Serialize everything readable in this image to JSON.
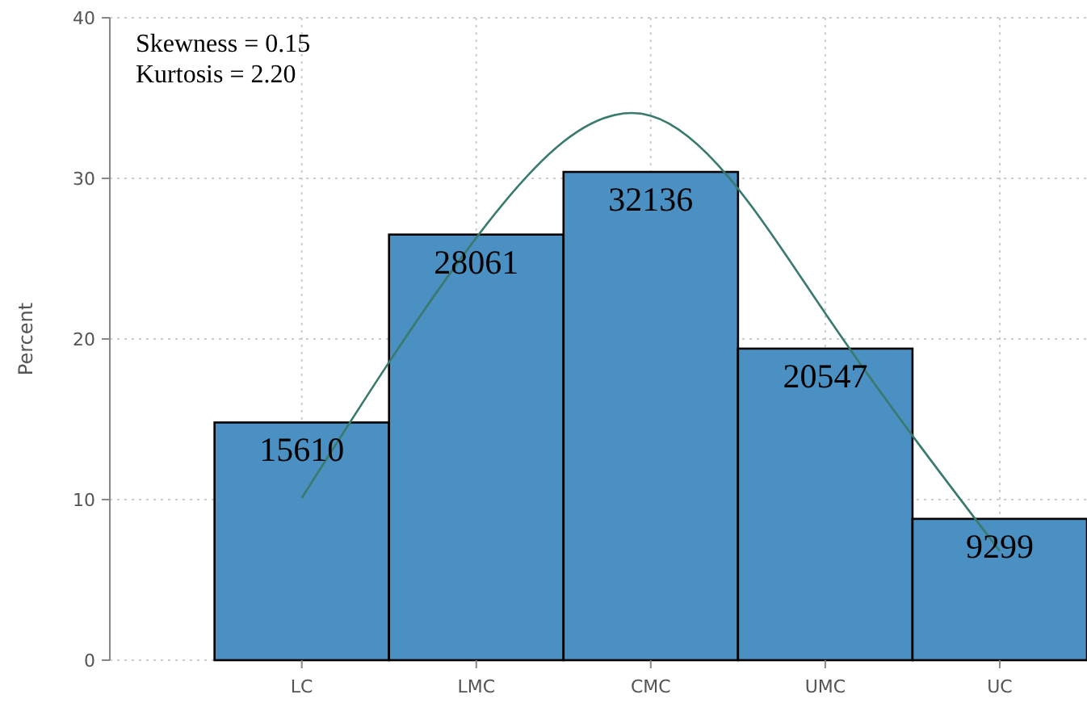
{
  "chart_data": {
    "type": "bar",
    "ylabel": "Percent",
    "categories": [
      "LC",
      "LMC",
      "CMC",
      "UMC",
      "UC"
    ],
    "series": [
      {
        "color": "#4a90c2",
        "values": [
          14.8,
          26.5,
          30.4,
          19.4,
          8.8
        ]
      },
      {
        "type": "line",
        "color": "#3a7a6e",
        "values": [
          10.1,
          26.3,
          33.9,
          21.6,
          6.8
        ]
      }
    ],
    "ylim": [
      0,
      40
    ],
    "yticks": [
      0,
      10,
      20,
      30,
      40
    ],
    "grid": true,
    "annotations": [
      "Skewness = 0.15",
      "Kurtosis = 2.20",
      {
        "text": "15610",
        "x": "LC",
        "y": 14.8
      },
      {
        "text": "28061",
        "x": "LMC",
        "y": 26.5
      },
      {
        "text": "32136",
        "x": "CMC",
        "y": 30.4
      },
      {
        "text": "20547",
        "x": "UMC",
        "y": 19.4
      },
      {
        "text": "9299",
        "x": "UC",
        "y": 8.8
      }
    ]
  }
}
